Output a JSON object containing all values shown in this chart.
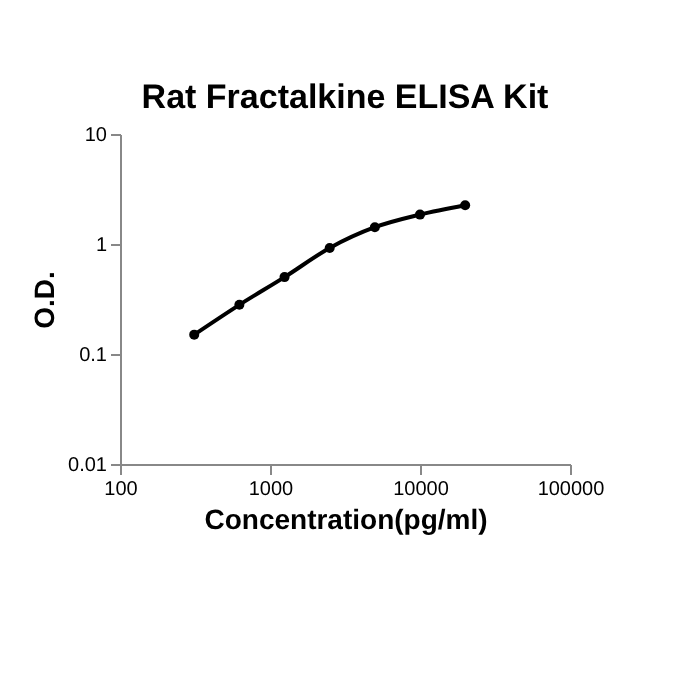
{
  "chart_data": {
    "type": "line",
    "title": "Rat Fractalkine ELISA Kit",
    "xlabel": "Concentration(pg/ml)",
    "ylabel": "O.D.",
    "x": [
      312.5,
      625,
      1250,
      2500,
      5000,
      10000,
      20000
    ],
    "series": [
      {
        "color": "#000000",
        "values": [
          0.15,
          0.28,
          0.5,
          0.92,
          1.42,
          1.85,
          2.25
        ]
      }
    ],
    "log": "xy",
    "xlim": [
      100,
      100000
    ],
    "ylim": [
      0.01,
      10
    ],
    "xticks": [
      100,
      1000,
      10000,
      100000
    ],
    "yticks": [
      0.01,
      0.1,
      1,
      10
    ],
    "grid": false,
    "marker": "circle",
    "line_style": "solid"
  }
}
